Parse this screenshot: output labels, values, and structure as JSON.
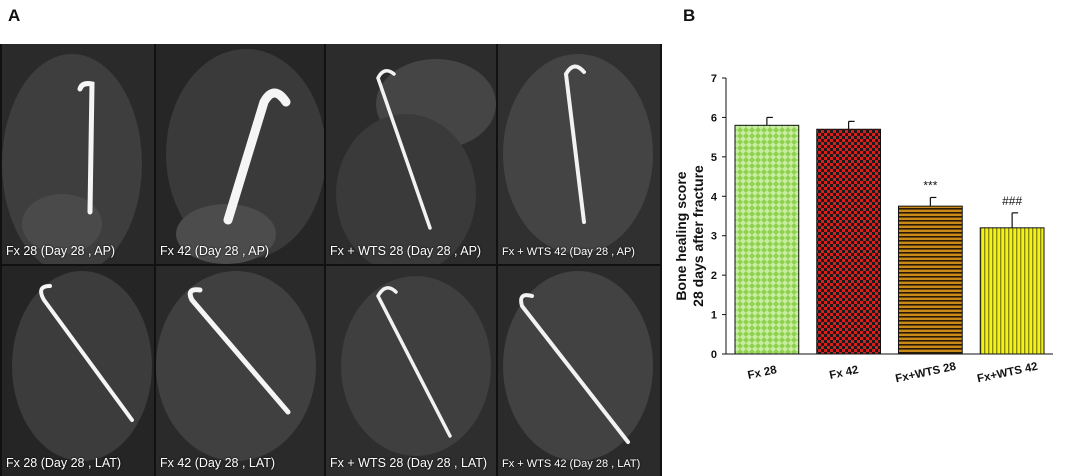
{
  "panel_a_label": "A",
  "panel_b_label": "B",
  "xray_panels": [
    {
      "caption": "Fx 28 (Day 28 , AP)"
    },
    {
      "caption": "Fx 42 (Day 28 , AP)"
    },
    {
      "caption": "Fx + WTS 28 (Day 28 , AP)"
    },
    {
      "caption": "Fx + WTS 42 (Day 28 , AP)"
    },
    {
      "caption": "Fx 28 (Day 28 , LAT)"
    },
    {
      "caption": "Fx 42 (Day 28 , LAT)"
    },
    {
      "caption": "Fx + WTS 28 (Day 28 , LAT)"
    },
    {
      "caption": "Fx + WTS 42 (Day 28 , LAT)"
    }
  ],
  "chart_data": {
    "type": "bar",
    "categories": [
      "Fx 28",
      "Fx 42",
      "Fx+WTS 28",
      "Fx+WTS 42"
    ],
    "values": [
      5.8,
      5.7,
      3.75,
      3.2
    ],
    "errors": [
      0.2,
      0.2,
      0.22,
      0.38
    ],
    "annotations": [
      "",
      "",
      "***",
      "###"
    ],
    "ylabel_line1": "Bone healing score",
    "ylabel_line2": "28 days after fracture",
    "ylim": [
      0,
      7
    ],
    "yticks": [
      0,
      1,
      2,
      3,
      4,
      5,
      6,
      7
    ],
    "grid": false,
    "bar_colors": [
      "#8fd14f",
      "#d91e1e",
      "#c98a1a",
      "#f2f21a"
    ],
    "bar_patterns": [
      "diamond-check",
      "checkerboard",
      "horizontal-stripes",
      "vertical-stripes"
    ]
  }
}
